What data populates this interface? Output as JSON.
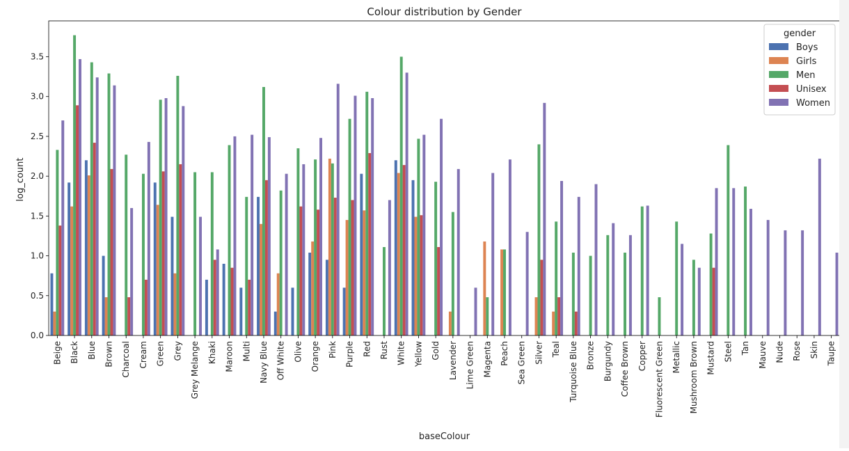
{
  "chart_data": {
    "type": "bar",
    "title": "Colour distribution by Gender",
    "xlabel": "baseColour",
    "ylabel": "log_count",
    "ylim": [
      0,
      3.95
    ],
    "yticks": [
      0.0,
      0.5,
      1.0,
      1.5,
      2.0,
      2.5,
      3.0,
      3.5
    ],
    "grid": false,
    "legend": {
      "title": "gender",
      "placement": "top-right"
    },
    "categories": [
      "Beige",
      "Black",
      "Blue",
      "Brown",
      "Charcoal",
      "Cream",
      "Green",
      "Grey",
      "Grey Melange",
      "Khaki",
      "Maroon",
      "Multi",
      "Navy Blue",
      "Off White",
      "Olive",
      "Orange",
      "Pink",
      "Purple",
      "Red",
      "Rust",
      "White",
      "Yellow",
      "Gold",
      "Lavender",
      "Lime Green",
      "Magenta",
      "Peach",
      "Sea Green",
      "Silver",
      "Teal",
      "Turquoise Blue",
      "Bronze",
      "Burgundy",
      "Coffee Brown",
      "Copper",
      "Fluorescent Green",
      "Metallic",
      "Mushroom Brown",
      "Mustard",
      "Steel",
      "Tan",
      "Mauve",
      "Nude",
      "Rose",
      "Skin",
      "Taupe"
    ],
    "series": [
      {
        "name": "Boys",
        "color": "#4c72b0",
        "values": [
          0.78,
          1.92,
          2.2,
          1.0,
          null,
          null,
          1.92,
          1.49,
          null,
          0.7,
          0.9,
          0.6,
          1.74,
          0.3,
          0.6,
          1.04,
          0.95,
          0.6,
          2.03,
          null,
          2.2,
          1.95,
          null,
          null,
          null,
          null,
          null,
          null,
          null,
          null,
          null,
          null,
          null,
          null,
          null,
          null,
          null,
          null,
          null,
          null,
          null,
          null,
          null,
          null,
          null,
          null
        ]
      },
      {
        "name": "Girls",
        "color": "#dd8452",
        "values": [
          0.3,
          1.62,
          2.01,
          0.48,
          null,
          null,
          1.64,
          0.78,
          null,
          null,
          null,
          null,
          1.4,
          0.78,
          null,
          1.18,
          2.22,
          1.45,
          1.57,
          null,
          2.04,
          1.49,
          null,
          0.3,
          null,
          1.18,
          1.08,
          null,
          0.48,
          0.3,
          null,
          null,
          null,
          null,
          null,
          null,
          null,
          null,
          null,
          null,
          null,
          null,
          null,
          null,
          null,
          null
        ]
      },
      {
        "name": "Men",
        "color": "#55a868",
        "values": [
          2.33,
          3.77,
          3.43,
          3.29,
          2.27,
          2.03,
          2.96,
          3.26,
          2.05,
          2.05,
          2.39,
          1.74,
          3.12,
          1.82,
          2.35,
          2.21,
          2.16,
          2.72,
          3.06,
          1.11,
          3.5,
          2.47,
          1.93,
          1.55,
          null,
          0.48,
          1.08,
          null,
          2.4,
          1.43,
          1.04,
          1.0,
          1.26,
          1.04,
          1.62,
          0.48,
          1.43,
          0.95,
          1.28,
          2.39,
          1.87,
          null,
          null,
          null,
          null,
          null
        ]
      },
      {
        "name": "Unisex",
        "color": "#c44e52",
        "values": [
          1.38,
          2.89,
          2.42,
          2.09,
          0.48,
          0.7,
          2.06,
          2.15,
          null,
          0.95,
          0.85,
          0.7,
          1.95,
          null,
          1.62,
          1.58,
          1.73,
          1.7,
          2.29,
          null,
          2.14,
          1.51,
          1.11,
          null,
          null,
          null,
          null,
          null,
          0.95,
          0.48,
          0.3,
          null,
          null,
          null,
          null,
          null,
          null,
          null,
          0.85,
          null,
          null,
          null,
          null,
          null,
          null,
          null
        ]
      },
      {
        "name": "Women",
        "color": "#8172b3",
        "values": [
          2.7,
          3.47,
          3.24,
          3.14,
          1.6,
          2.43,
          2.98,
          2.88,
          1.49,
          1.08,
          2.5,
          2.52,
          2.49,
          2.03,
          2.15,
          2.48,
          3.16,
          3.01,
          2.98,
          1.7,
          3.3,
          2.52,
          2.72,
          2.09,
          0.6,
          2.04,
          2.21,
          1.3,
          2.92,
          1.94,
          1.74,
          1.9,
          1.41,
          1.26,
          1.63,
          null,
          1.15,
          0.85,
          1.85,
          1.85,
          1.59,
          1.45,
          1.32,
          1.32,
          2.22,
          1.04
        ]
      }
    ]
  }
}
